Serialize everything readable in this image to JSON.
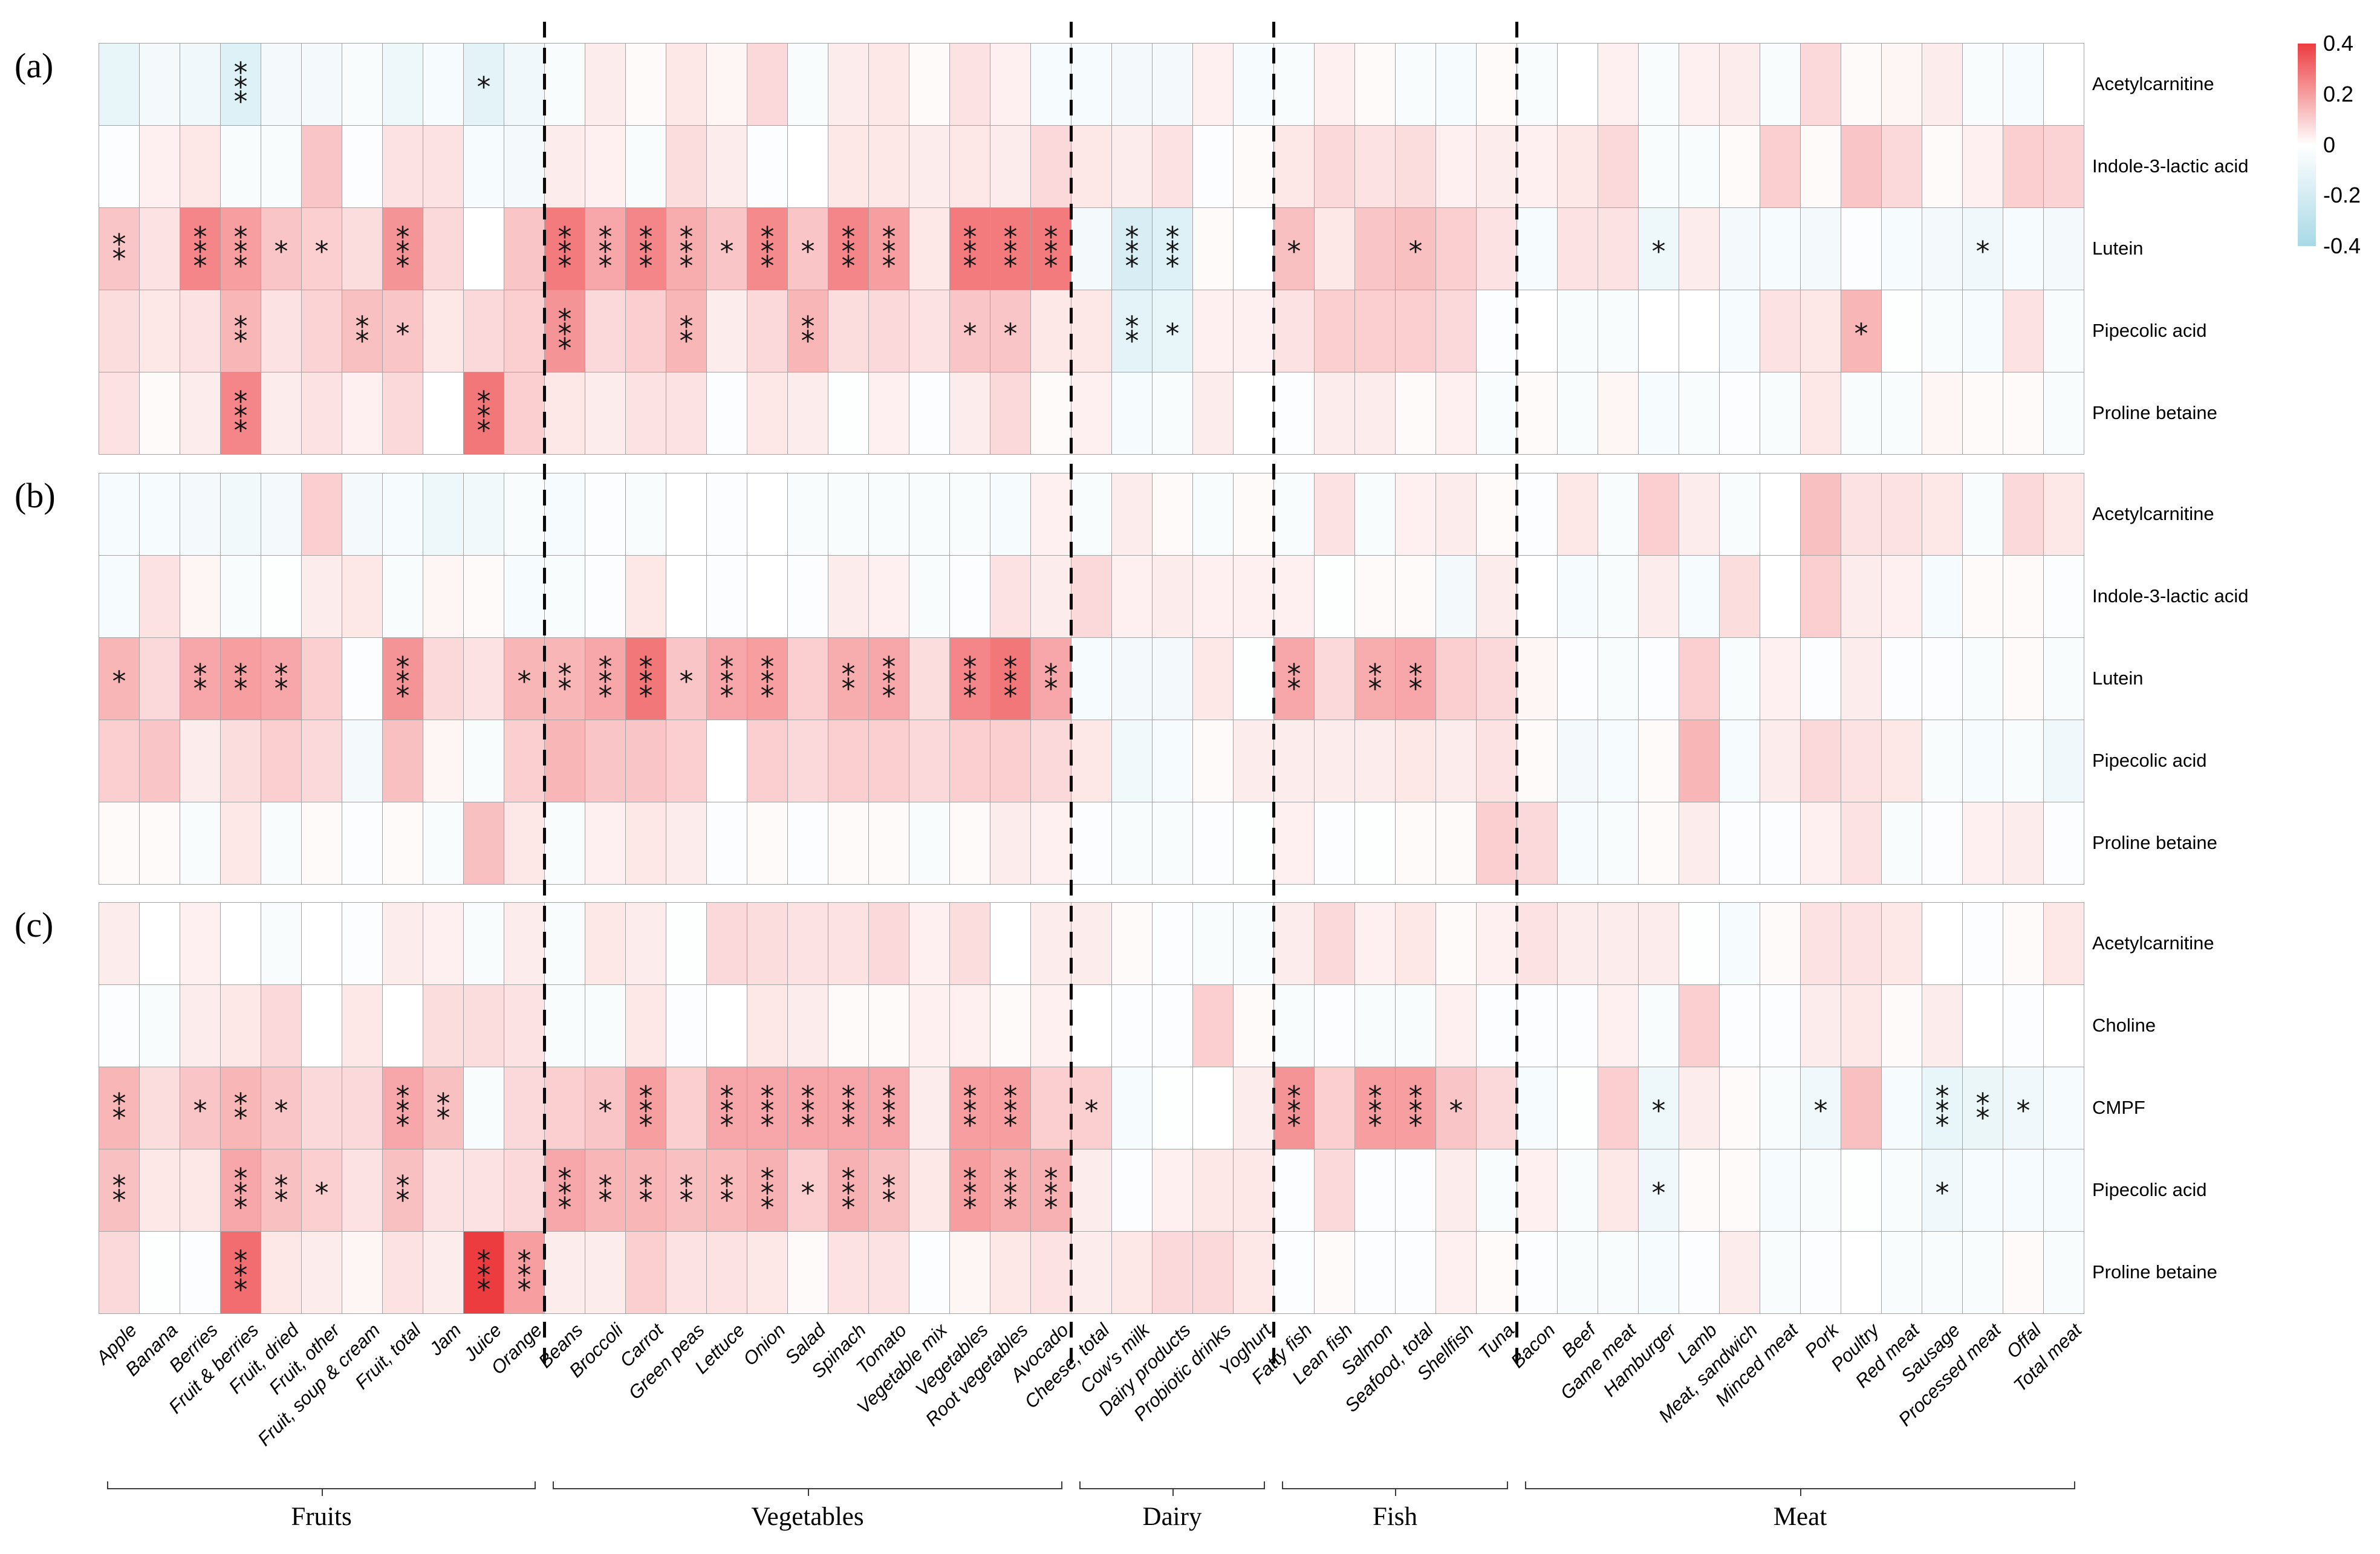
{
  "figure": {
    "panel_tags": [
      "(a)",
      "(b)",
      "(c)"
    ]
  },
  "chart_data": {
    "type": "heatmap",
    "title": "",
    "legend_position": "top-right",
    "colorbar": {
      "min": -0.4,
      "max": 0.4,
      "ticks": [
        "0.4",
        "0.2",
        "0",
        "-0.2",
        "-0.4"
      ],
      "pos_color": "#ed3c40",
      "zero_color": "#ffffff",
      "neg_color": "#a8d9e6"
    },
    "columns": [
      "Apple",
      "Banana",
      "Berries",
      "Fruit & berries",
      "Fruit, dried",
      "Fruit, other",
      "Fruit, soup & cream",
      "Fruit, total",
      "Jam",
      "Juice",
      "Orange",
      "Beans",
      "Broccoli",
      "Carrot",
      "Green peas",
      "Lettuce",
      "Onion",
      "Salad",
      "Spinach",
      "Tomato",
      "Vegetable mix",
      "Vegetables",
      "Root vegetables",
      "Avocado",
      "Cheese, total",
      "Cow's milk",
      "Dairy products",
      "Probiotic drinks",
      "Yoghurt",
      "Fatty fish",
      "Lean fish",
      "Salmon",
      "Seafood, total",
      "Shellfish",
      "Tuna",
      "Bacon",
      "Beef",
      "Game meat",
      "Hamburger",
      "Lamb",
      "Meat, sandwich",
      "Minced meat",
      "Pork",
      "Poultry",
      "Red meat",
      "Sausage",
      "Processed meat",
      "Offal",
      "Total meat"
    ],
    "groups": [
      {
        "label": "Fruits",
        "span": 11
      },
      {
        "label": "Vegetables",
        "span": 13
      },
      {
        "label": "Dairy",
        "span": 5
      },
      {
        "label": "Fish",
        "span": 6
      },
      {
        "label": "Meat",
        "span": 14
      }
    ],
    "panels": [
      {
        "tag": "(a)",
        "rows": [
          "Acetylcarnitine",
          "Indole-3-lactic acid",
          "Lutein",
          "Pipecolic acid",
          "Proline betaine"
        ],
        "values": [
          [
            -0.1,
            -0.05,
            -0.07,
            -0.15,
            -0.05,
            -0.05,
            -0.03,
            -0.08,
            -0.04,
            -0.13,
            -0.07,
            -0.03,
            0.04,
            0.01,
            0.05,
            0.02,
            0.08,
            -0.03,
            0.04,
            0.05,
            0.01,
            0.06,
            0.03,
            -0.04,
            -0.04,
            -0.05,
            -0.05,
            0.03,
            -0.04,
            -0.03,
            0.03,
            0.01,
            -0.03,
            -0.04,
            0.01,
            -0.03,
            0.0,
            0.03,
            -0.03,
            0.03,
            0.04,
            -0.03,
            0.08,
            0.01,
            0.02,
            0.04,
            -0.03,
            -0.04,
            0.0
          ],
          [
            -0.02,
            0.03,
            0.05,
            -0.03,
            -0.03,
            0.12,
            -0.02,
            0.06,
            0.06,
            -0.04,
            -0.05,
            0.04,
            0.03,
            -0.03,
            0.07,
            0.04,
            -0.02,
            0.0,
            0.05,
            0.05,
            0.04,
            0.05,
            0.04,
            0.08,
            0.05,
            0.04,
            0.06,
            -0.02,
            0.01,
            0.05,
            0.08,
            0.06,
            0.07,
            0.03,
            0.04,
            0.03,
            0.05,
            0.08,
            -0.03,
            -0.03,
            0.01,
            0.1,
            0.01,
            0.12,
            0.08,
            0.01,
            0.03,
            0.1,
            0.09
          ],
          [
            0.12,
            0.06,
            0.25,
            0.2,
            0.12,
            0.1,
            0.07,
            0.22,
            0.08,
            0.0,
            0.12,
            0.27,
            0.18,
            0.25,
            0.17,
            0.12,
            0.24,
            0.12,
            0.25,
            0.2,
            0.05,
            0.27,
            0.27,
            0.27,
            -0.05,
            -0.18,
            -0.15,
            0.01,
            0.0,
            0.13,
            0.05,
            0.12,
            0.13,
            0.1,
            0.06,
            -0.04,
            0.06,
            0.06,
            -0.08,
            0.04,
            -0.05,
            -0.04,
            -0.05,
            -0.02,
            -0.04,
            -0.05,
            -0.07,
            -0.04,
            -0.05
          ],
          [
            0.07,
            0.05,
            0.06,
            0.15,
            0.06,
            0.09,
            0.13,
            0.12,
            0.05,
            0.08,
            0.1,
            0.22,
            0.08,
            0.1,
            0.15,
            0.04,
            0.08,
            0.15,
            0.07,
            0.08,
            0.06,
            0.12,
            0.12,
            0.05,
            0.05,
            -0.13,
            -0.1,
            0.03,
            0.03,
            0.06,
            0.1,
            0.1,
            0.1,
            0.08,
            -0.02,
            0.0,
            -0.03,
            -0.03,
            0.0,
            0.0,
            -0.04,
            0.06,
            0.05,
            0.15,
            -0.01,
            -0.03,
            -0.04,
            0.06,
            -0.03
          ],
          [
            0.06,
            0.01,
            0.04,
            0.25,
            0.04,
            0.06,
            0.03,
            0.08,
            0.0,
            0.28,
            0.1,
            0.05,
            0.04,
            0.06,
            0.06,
            -0.02,
            0.05,
            0.04,
            -0.01,
            0.03,
            -0.02,
            0.04,
            0.08,
            0.01,
            0.03,
            -0.04,
            -0.03,
            0.04,
            0.0,
            -0.02,
            0.04,
            0.04,
            0.01,
            0.03,
            -0.03,
            0.01,
            -0.03,
            0.02,
            -0.04,
            -0.03,
            -0.02,
            -0.03,
            0.05,
            -0.03,
            -0.03,
            0.02,
            0.01,
            0.01,
            -0.03
          ]
        ],
        "stars": [
          {
            "3": "***",
            "9": "*"
          },
          {},
          {
            "0": "**",
            "2": "***",
            "3": "***",
            "4": "*",
            "5": "*",
            "7": "***",
            "11": "***",
            "12": "***",
            "13": "***",
            "14": "***",
            "15": "*",
            "16": "***",
            "17": "*",
            "18": "***",
            "19": "***",
            "21": "***",
            "22": "***",
            "23": "***",
            "25": "***",
            "26": "***",
            "29": "*",
            "32": "*",
            "38": "*",
            "46": "*"
          },
          {
            "3": "**",
            "6": "**",
            "7": "*",
            "11": "***",
            "14": "**",
            "17": "**",
            "21": "*",
            "22": "*",
            "25": "**",
            "26": "*",
            "43": "*"
          },
          {
            "3": "***",
            "9": "***"
          }
        ]
      },
      {
        "tag": "(b)",
        "rows": [
          "Acetylcarnitine",
          "Indole-3-lactic acid",
          "Lutein",
          "Pipecolic acid",
          "Proline betaine"
        ],
        "values": [
          [
            -0.04,
            -0.04,
            -0.05,
            -0.06,
            -0.05,
            0.1,
            -0.05,
            -0.04,
            -0.08,
            -0.06,
            -0.03,
            -0.04,
            -0.02,
            -0.03,
            0.0,
            -0.02,
            0.0,
            -0.03,
            -0.03,
            -0.03,
            -0.03,
            -0.03,
            -0.04,
            0.03,
            -0.03,
            0.04,
            0.01,
            -0.03,
            0.01,
            -0.03,
            0.06,
            -0.03,
            0.03,
            0.04,
            0.01,
            -0.02,
            0.05,
            -0.03,
            0.1,
            0.04,
            -0.03,
            0.0,
            0.13,
            0.06,
            0.06,
            0.05,
            -0.03,
            0.08,
            0.05
          ],
          [
            -0.04,
            0.06,
            0.02,
            -0.03,
            -0.01,
            0.04,
            0.05,
            -0.03,
            0.02,
            0.01,
            -0.04,
            -0.03,
            -0.02,
            0.05,
            0.0,
            -0.02,
            0.0,
            -0.02,
            0.04,
            0.03,
            -0.03,
            -0.02,
            0.06,
            0.04,
            0.08,
            0.03,
            0.04,
            0.03,
            0.03,
            0.03,
            -0.01,
            0.01,
            0.01,
            -0.05,
            0.04,
            0.0,
            -0.04,
            -0.03,
            0.04,
            -0.04,
            0.07,
            0.0,
            0.1,
            0.04,
            0.03,
            -0.04,
            0.01,
            0.01,
            -0.02
          ],
          [
            0.15,
            0.08,
            0.18,
            0.2,
            0.18,
            0.1,
            -0.02,
            0.22,
            0.08,
            0.06,
            0.15,
            0.15,
            0.18,
            0.28,
            0.12,
            0.18,
            0.2,
            0.1,
            0.17,
            0.18,
            0.07,
            0.25,
            0.28,
            0.18,
            -0.04,
            -0.05,
            -0.05,
            0.05,
            -0.01,
            0.18,
            0.08,
            0.17,
            0.18,
            0.1,
            0.08,
            0.02,
            -0.02,
            -0.03,
            -0.02,
            0.1,
            -0.03,
            0.03,
            -0.02,
            0.04,
            -0.02,
            -0.02,
            -0.03,
            0.01,
            -0.03
          ],
          [
            0.1,
            0.12,
            0.04,
            0.07,
            0.1,
            0.08,
            -0.05,
            0.13,
            0.02,
            -0.03,
            0.1,
            0.15,
            0.12,
            0.12,
            0.1,
            0.0,
            0.1,
            0.08,
            0.1,
            0.1,
            0.08,
            0.1,
            0.1,
            0.08,
            0.05,
            -0.06,
            -0.04,
            0.01,
            0.04,
            0.04,
            0.04,
            0.04,
            0.05,
            0.04,
            0.06,
            0.01,
            -0.05,
            -0.04,
            0.01,
            0.15,
            -0.04,
            0.04,
            0.08,
            0.06,
            0.05,
            -0.03,
            -0.04,
            -0.03,
            -0.07
          ],
          [
            0.01,
            0.01,
            -0.03,
            0.05,
            -0.03,
            0.01,
            -0.02,
            0.01,
            -0.03,
            0.13,
            0.05,
            -0.03,
            0.03,
            0.05,
            0.04,
            -0.02,
            0.01,
            -0.02,
            0.01,
            0.01,
            -0.03,
            0.01,
            0.04,
            0.03,
            -0.02,
            -0.03,
            -0.03,
            -0.02,
            -0.01,
            0.03,
            -0.02,
            -0.01,
            0.01,
            0.01,
            0.1,
            0.08,
            -0.04,
            -0.03,
            0.01,
            0.04,
            -0.02,
            -0.02,
            0.03,
            0.06,
            -0.03,
            -0.02,
            0.03,
            0.04,
            -0.02
          ]
        ],
        "stars": [
          {},
          {},
          {
            "0": "*",
            "2": "**",
            "3": "**",
            "4": "**",
            "7": "***",
            "10": "*",
            "11": "**",
            "12": "***",
            "13": "***",
            "14": "*",
            "15": "***",
            "16": "***",
            "18": "**",
            "19": "***",
            "21": "***",
            "22": "***",
            "23": "**",
            "29": "**",
            "31": "**",
            "32": "**"
          },
          {},
          {}
        ]
      },
      {
        "tag": "(c)",
        "rows": [
          "Acetylcarnitine",
          "Choline",
          "CMPF",
          "Pipecolic acid",
          "Proline betaine"
        ],
        "values": [
          [
            0.04,
            0.0,
            0.03,
            0.0,
            -0.03,
            0.0,
            -0.02,
            0.04,
            0.03,
            -0.03,
            0.04,
            -0.03,
            0.05,
            0.04,
            -0.01,
            0.08,
            0.07,
            0.06,
            0.06,
            0.08,
            0.03,
            0.07,
            0.0,
            0.04,
            0.04,
            0.01,
            -0.02,
            -0.03,
            -0.03,
            0.04,
            0.08,
            0.03,
            0.05,
            0.01,
            0.03,
            0.06,
            0.04,
            0.04,
            0.04,
            -0.01,
            -0.04,
            0.01,
            0.06,
            0.06,
            0.05,
            0.0,
            -0.02,
            0.01,
            0.05
          ],
          [
            -0.02,
            -0.03,
            0.04,
            0.05,
            0.08,
            0.0,
            0.05,
            0.0,
            0.07,
            0.07,
            0.06,
            -0.03,
            -0.03,
            0.05,
            -0.02,
            0.0,
            0.05,
            0.04,
            0.01,
            0.01,
            0.03,
            0.03,
            0.01,
            0.03,
            0.0,
            -0.02,
            -0.02,
            0.1,
            0.01,
            -0.03,
            -0.02,
            -0.03,
            -0.03,
            0.03,
            -0.02,
            -0.02,
            -0.02,
            0.03,
            -0.03,
            0.1,
            -0.02,
            -0.02,
            0.04,
            0.05,
            0.01,
            0.04,
            0.0,
            -0.02,
            0.0
          ],
          [
            0.15,
            0.07,
            0.12,
            0.15,
            0.12,
            0.08,
            0.08,
            0.18,
            0.13,
            -0.03,
            0.08,
            0.1,
            0.12,
            0.2,
            0.1,
            0.18,
            0.18,
            0.18,
            0.18,
            0.18,
            0.04,
            0.2,
            0.2,
            0.1,
            0.1,
            -0.04,
            -0.01,
            0.0,
            0.04,
            0.22,
            0.1,
            0.2,
            0.2,
            0.12,
            0.08,
            -0.04,
            -0.01,
            0.1,
            -0.08,
            0.04,
            0.01,
            -0.03,
            -0.07,
            0.13,
            -0.04,
            -0.1,
            -0.09,
            -0.07,
            -0.04
          ],
          [
            0.13,
            0.05,
            0.05,
            0.18,
            0.13,
            0.1,
            0.06,
            0.13,
            0.06,
            0.06,
            0.08,
            0.18,
            0.15,
            0.15,
            0.13,
            0.14,
            0.16,
            0.1,
            0.16,
            0.13,
            0.05,
            0.2,
            0.17,
            0.16,
            0.04,
            -0.02,
            0.03,
            0.05,
            0.05,
            -0.02,
            0.08,
            -0.02,
            -0.02,
            0.04,
            -0.03,
            0.03,
            -0.03,
            0.05,
            -0.07,
            0.01,
            0.01,
            -0.04,
            -0.03,
            -0.01,
            -0.03,
            -0.07,
            -0.04,
            -0.04,
            -0.04
          ],
          [
            0.08,
            -0.01,
            -0.02,
            0.3,
            0.05,
            0.04,
            0.02,
            0.06,
            0.04,
            0.45,
            0.2,
            0.04,
            0.04,
            0.1,
            0.06,
            0.06,
            0.05,
            0.01,
            0.06,
            0.06,
            -0.02,
            0.02,
            0.05,
            0.06,
            0.04,
            0.05,
            0.08,
            0.08,
            0.05,
            -0.02,
            0.01,
            -0.02,
            -0.02,
            0.03,
            0.01,
            -0.02,
            -0.03,
            -0.03,
            -0.04,
            -0.02,
            0.04,
            -0.03,
            -0.02,
            0.0,
            -0.03,
            -0.03,
            -0.03,
            0.01,
            -0.03
          ]
        ],
        "stars": [
          {},
          {},
          {
            "0": "**",
            "2": "*",
            "3": "**",
            "4": "*",
            "7": "***",
            "8": "**",
            "12": "*",
            "13": "***",
            "15": "***",
            "16": "***",
            "17": "***",
            "18": "***",
            "19": "***",
            "21": "***",
            "22": "***",
            "24": "*",
            "29": "***",
            "31": "***",
            "32": "***",
            "33": "*",
            "38": "*",
            "42": "*",
            "45": "***",
            "46": "**",
            "47": "*"
          },
          {
            "0": "**",
            "3": "***",
            "4": "**",
            "5": "*",
            "7": "**",
            "11": "***",
            "12": "**",
            "13": "**",
            "14": "**",
            "15": "**",
            "16": "***",
            "17": "*",
            "18": "***",
            "19": "**",
            "21": "***",
            "22": "***",
            "23": "***",
            "38": "*",
            "45": "*"
          },
          {
            "3": "***",
            "9": "***",
            "10": "***"
          }
        ]
      }
    ]
  }
}
